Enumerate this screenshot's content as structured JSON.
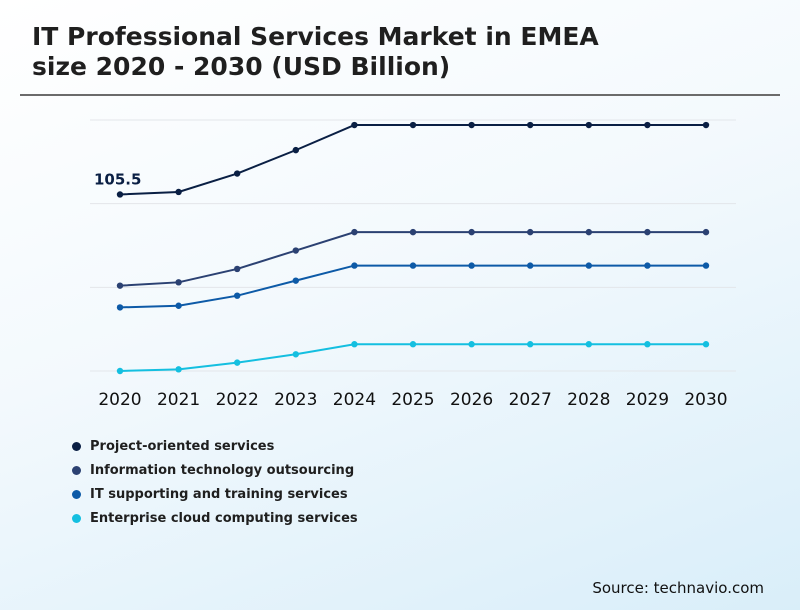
{
  "chart_data": {
    "type": "line",
    "title": "IT Professional Services Market in EMEA size 2020 - 2030 (USD Billion)",
    "title_lines": [
      "IT Professional Services Market in EMEA",
      "size 2020 - 2030 (USD Billion)"
    ],
    "categories": [
      "2020",
      "2021",
      "2022",
      "2023",
      "2024",
      "2025",
      "2026",
      "2027",
      "2028",
      "2029",
      "2030"
    ],
    "xlabel": "",
    "ylabel": "",
    "ylim": [
      0,
      150
    ],
    "grid": true,
    "legend_position": "bottom-left",
    "series": [
      {
        "name": "Project-oriented services",
        "color": "#0a1f44",
        "values": [
          105.5,
          107,
          118,
          132,
          147,
          147,
          147,
          147,
          147,
          147,
          147
        ]
      },
      {
        "name": "Information technology outsourcing",
        "color": "#2b4172",
        "values": [
          51,
          53,
          61,
          72,
          83,
          83,
          83,
          83,
          83,
          83,
          83
        ]
      },
      {
        "name": "IT supporting and training services",
        "color": "#0d5aa7",
        "values": [
          38,
          39,
          45,
          54,
          63,
          63,
          63,
          63,
          63,
          63,
          63
        ]
      },
      {
        "name": "Enterprise cloud computing services",
        "color": "#14bfe0",
        "values": [
          0,
          1,
          5,
          10,
          16,
          16,
          16,
          16,
          16,
          16,
          16
        ]
      }
    ],
    "annotations": [
      {
        "text": "105.5",
        "series": 0,
        "index": 0
      }
    ]
  },
  "source": "Source: technavio.com"
}
